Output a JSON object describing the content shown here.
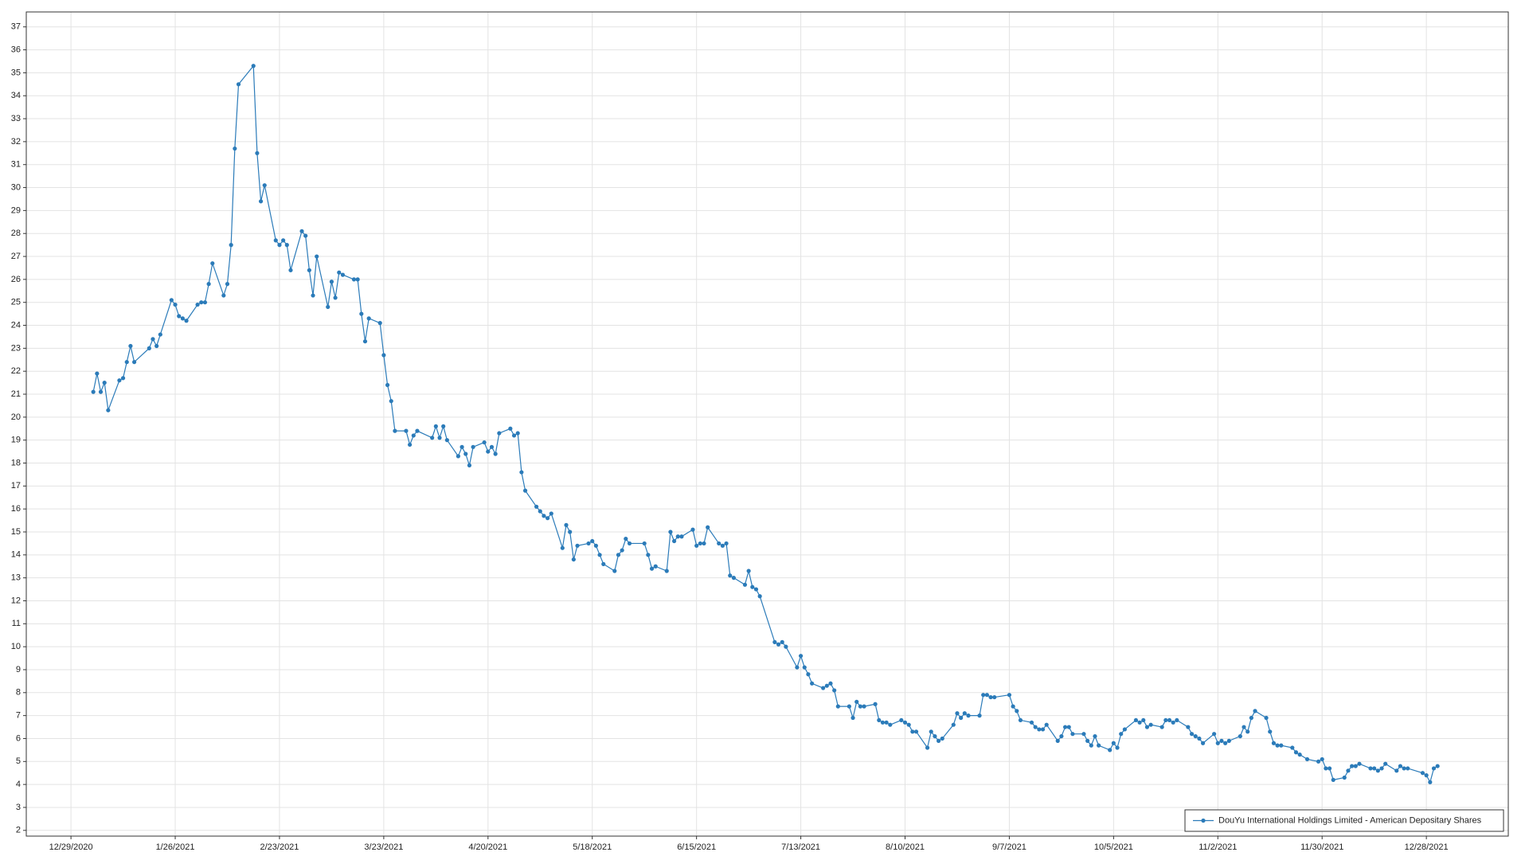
{
  "chart_data": {
    "type": "line",
    "x": [
      "1/4/2021",
      "1/5/2021",
      "1/6/2021",
      "1/7/2021",
      "1/8/2021",
      "1/11/2021",
      "1/12/2021",
      "1/13/2021",
      "1/14/2021",
      "1/15/2021",
      "1/19/2021",
      "1/20/2021",
      "1/21/2021",
      "1/22/2021",
      "1/25/2021",
      "1/26/2021",
      "1/27/2021",
      "1/28/2021",
      "1/29/2021",
      "2/1/2021",
      "2/2/2021",
      "2/3/2021",
      "2/4/2021",
      "2/5/2021",
      "2/8/2021",
      "2/9/2021",
      "2/10/2021",
      "2/11/2021",
      "2/12/2021",
      "2/16/2021",
      "2/17/2021",
      "2/18/2021",
      "2/19/2021",
      "2/22/2021",
      "2/23/2021",
      "2/24/2021",
      "2/25/2021",
      "2/26/2021",
      "3/1/2021",
      "3/2/2021",
      "3/3/2021",
      "3/4/2021",
      "3/5/2021",
      "3/8/2021",
      "3/9/2021",
      "3/10/2021",
      "3/11/2021",
      "3/12/2021",
      "3/15/2021",
      "3/16/2021",
      "3/17/2021",
      "3/18/2021",
      "3/19/2021",
      "3/22/2021",
      "3/23/2021",
      "3/24/2021",
      "3/25/2021",
      "3/26/2021",
      "3/29/2021",
      "3/30/2021",
      "3/31/2021",
      "4/1/2021",
      "4/5/2021",
      "4/6/2021",
      "4/7/2021",
      "4/8/2021",
      "4/9/2021",
      "4/12/2021",
      "4/13/2021",
      "4/14/2021",
      "4/15/2021",
      "4/16/2021",
      "4/19/2021",
      "4/20/2021",
      "4/21/2021",
      "4/22/2021",
      "4/23/2021",
      "4/26/2021",
      "4/27/2021",
      "4/28/2021",
      "4/29/2021",
      "4/30/2021",
      "5/3/2021",
      "5/4/2021",
      "5/5/2021",
      "5/6/2021",
      "5/7/2021",
      "5/10/2021",
      "5/11/2021",
      "5/12/2021",
      "5/13/2021",
      "5/14/2021",
      "5/17/2021",
      "5/18/2021",
      "5/19/2021",
      "5/20/2021",
      "5/21/2021",
      "5/24/2021",
      "5/25/2021",
      "5/26/2021",
      "5/27/2021",
      "5/28/2021",
      "6/1/2021",
      "6/2/2021",
      "6/3/2021",
      "6/4/2021",
      "6/7/2021",
      "6/8/2021",
      "6/9/2021",
      "6/10/2021",
      "6/11/2021",
      "6/14/2021",
      "6/15/2021",
      "6/16/2021",
      "6/17/2021",
      "6/18/2021",
      "6/21/2021",
      "6/22/2021",
      "6/23/2021",
      "6/24/2021",
      "6/25/2021",
      "6/28/2021",
      "6/29/2021",
      "6/30/2021",
      "7/1/2021",
      "7/2/2021",
      "7/6/2021",
      "7/7/2021",
      "7/8/2021",
      "7/9/2021",
      "7/12/2021",
      "7/13/2021",
      "7/14/2021",
      "7/15/2021",
      "7/16/2021",
      "7/19/2021",
      "7/20/2021",
      "7/21/2021",
      "7/22/2021",
      "7/23/2021",
      "7/26/2021",
      "7/27/2021",
      "7/28/2021",
      "7/29/2021",
      "7/30/2021",
      "8/2/2021",
      "8/3/2021",
      "8/4/2021",
      "8/5/2021",
      "8/6/2021",
      "8/9/2021",
      "8/10/2021",
      "8/11/2021",
      "8/12/2021",
      "8/13/2021",
      "8/16/2021",
      "8/17/2021",
      "8/18/2021",
      "8/19/2021",
      "8/20/2021",
      "8/23/2021",
      "8/24/2021",
      "8/25/2021",
      "8/26/2021",
      "8/27/2021",
      "8/30/2021",
      "8/31/2021",
      "9/1/2021",
      "9/2/2021",
      "9/3/2021",
      "9/7/2021",
      "9/8/2021",
      "9/9/2021",
      "9/10/2021",
      "9/13/2021",
      "9/14/2021",
      "9/15/2021",
      "9/16/2021",
      "9/17/2021",
      "9/20/2021",
      "9/21/2021",
      "9/22/2021",
      "9/23/2021",
      "9/24/2021",
      "9/27/2021",
      "9/28/2021",
      "9/29/2021",
      "9/30/2021",
      "10/1/2021",
      "10/4/2021",
      "10/5/2021",
      "10/6/2021",
      "10/7/2021",
      "10/8/2021",
      "10/11/2021",
      "10/12/2021",
      "10/13/2021",
      "10/14/2021",
      "10/15/2021",
      "10/18/2021",
      "10/19/2021",
      "10/20/2021",
      "10/21/2021",
      "10/22/2021",
      "10/25/2021",
      "10/26/2021",
      "10/27/2021",
      "10/28/2021",
      "10/29/2021",
      "11/1/2021",
      "11/2/2021",
      "11/3/2021",
      "11/4/2021",
      "11/5/2021",
      "11/8/2021",
      "11/9/2021",
      "11/10/2021",
      "11/11/2021",
      "11/12/2021",
      "11/15/2021",
      "11/16/2021",
      "11/17/2021",
      "11/18/2021",
      "11/19/2021",
      "11/22/2021",
      "11/23/2021",
      "11/24/2021",
      "11/26/2021",
      "11/29/2021",
      "11/30/2021",
      "12/1/2021",
      "12/2/2021",
      "12/3/2021",
      "12/6/2021",
      "12/7/2021",
      "12/8/2021",
      "12/9/2021",
      "12/10/2021",
      "12/13/2021",
      "12/14/2021",
      "12/15/2021",
      "12/16/2021",
      "12/17/2021",
      "12/20/2021",
      "12/21/2021",
      "12/22/2021",
      "12/23/2021",
      "12/27/2021",
      "12/28/2021",
      "12/29/2021",
      "12/30/2021",
      "12/31/2021"
    ],
    "series": [
      {
        "name": "DouYu International Holdings Limited - American Depositary Shares",
        "color": "#2b7bb9",
        "values": [
          21.1,
          21.9,
          21.1,
          21.5,
          20.3,
          21.6,
          21.7,
          22.4,
          23.1,
          22.4,
          23.0,
          23.4,
          23.1,
          23.6,
          25.1,
          24.9,
          24.4,
          24.3,
          24.2,
          24.9,
          25.0,
          25.0,
          25.8,
          26.7,
          25.3,
          25.8,
          27.5,
          31.7,
          34.5,
          35.3,
          31.5,
          29.4,
          30.1,
          27.7,
          27.5,
          27.7,
          27.5,
          26.4,
          28.1,
          27.9,
          26.4,
          25.3,
          27.0,
          24.8,
          25.9,
          25.2,
          26.3,
          26.2,
          26.0,
          26.0,
          24.5,
          23.3,
          24.3,
          24.1,
          22.7,
          21.4,
          20.7,
          19.4,
          19.4,
          18.8,
          19.2,
          19.4,
          19.1,
          19.6,
          19.1,
          19.6,
          19.0,
          18.3,
          18.7,
          18.4,
          17.9,
          18.7,
          18.9,
          18.5,
          18.7,
          18.4,
          19.3,
          19.5,
          19.2,
          19.3,
          17.6,
          16.8,
          16.1,
          15.9,
          15.7,
          15.6,
          15.8,
          14.3,
          15.3,
          15.0,
          13.8,
          14.4,
          14.5,
          14.6,
          14.4,
          14.0,
          13.6,
          13.3,
          14.0,
          14.2,
          14.7,
          14.5,
          14.5,
          14.0,
          13.4,
          13.5,
          13.3,
          15.0,
          14.6,
          14.8,
          14.8,
          15.1,
          14.4,
          14.5,
          14.5,
          15.2,
          14.5,
          14.4,
          14.5,
          13.1,
          13.0,
          12.7,
          13.3,
          12.6,
          12.5,
          12.2,
          10.2,
          10.1,
          10.2,
          10.0,
          9.1,
          9.6,
          9.1,
          8.8,
          8.4,
          8.2,
          8.3,
          8.4,
          8.1,
          7.4,
          7.4,
          6.9,
          7.6,
          7.4,
          7.4,
          7.5,
          6.8,
          6.7,
          6.7,
          6.6,
          6.8,
          6.7,
          6.6,
          6.3,
          6.3,
          5.6,
          6.3,
          6.1,
          5.9,
          6.0,
          6.6,
          7.1,
          6.9,
          7.1,
          7.0,
          7.0,
          7.9,
          7.9,
          7.8,
          7.8,
          7.9,
          7.4,
          7.2,
          6.8,
          6.7,
          6.5,
          6.4,
          6.4,
          6.6,
          5.9,
          6.1,
          6.5,
          6.5,
          6.2,
          6.2,
          5.9,
          5.7,
          6.1,
          5.7,
          5.5,
          5.8,
          5.6,
          6.2,
          6.4,
          6.8,
          6.7,
          6.8,
          6.5,
          6.6,
          6.5,
          6.8,
          6.8,
          6.7,
          6.8,
          6.5,
          6.2,
          6.1,
          6.0,
          5.8,
          6.2,
          5.8,
          5.9,
          5.8,
          5.9,
          6.1,
          6.5,
          6.3,
          6.9,
          7.2,
          6.9,
          6.3,
          5.8,
          5.7,
          5.7,
          5.6,
          5.4,
          5.3,
          5.1,
          5.0,
          5.1,
          4.7,
          4.7,
          4.2,
          4.3,
          4.6,
          4.8,
          4.8,
          4.9,
          4.7,
          4.7,
          4.6,
          4.7,
          4.9,
          4.6,
          4.8,
          4.7,
          4.7,
          4.5,
          4.4,
          4.1,
          4.7,
          4.8
        ]
      }
    ],
    "xlim": [
      "12/17/2020",
      "1/19/2022"
    ],
    "xticks": [
      "12/29/2020",
      "1/26/2021",
      "2/23/2021",
      "3/23/2021",
      "4/20/2021",
      "5/18/2021",
      "6/15/2021",
      "7/13/2021",
      "8/10/2021",
      "9/7/2021",
      "10/5/2021",
      "11/2/2021",
      "11/30/2021",
      "12/28/2021"
    ],
    "ylim": [
      1.75,
      37.65
    ],
    "yticks": [
      2,
      3,
      4,
      5,
      6,
      7,
      8,
      9,
      10,
      11,
      12,
      13,
      14,
      15,
      16,
      17,
      18,
      19,
      20,
      21,
      22,
      23,
      24,
      25,
      26,
      27,
      28,
      29,
      30,
      31,
      32,
      33,
      34,
      35,
      36,
      37
    ],
    "grid": true,
    "legend": "lower right"
  }
}
